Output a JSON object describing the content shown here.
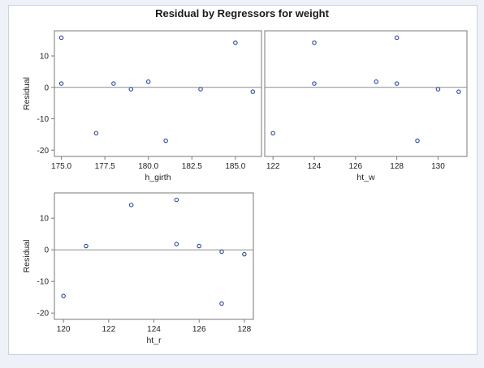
{
  "title": "Residual by Regressors for weight",
  "colors": {
    "marker": "#2948a7",
    "axis": "#7a7a7a",
    "zero_line": "#8c8c8c",
    "text": "#222222"
  },
  "chart_data": [
    {
      "type": "scatter",
      "xlabel": "h_girth",
      "ylabel": "Residual",
      "xlim": [
        174.6,
        186.5
      ],
      "ylim": [
        -22,
        18
      ],
      "xticks": [
        "175.0",
        "177.5",
        "180.0",
        "182.5",
        "185.0"
      ],
      "yticks": [
        "10",
        "0",
        "-10",
        "-20"
      ],
      "reference_line_y": 0,
      "points": [
        {
          "x": 175.0,
          "y": 15.8
        },
        {
          "x": 175.0,
          "y": 1.2
        },
        {
          "x": 177.0,
          "y": -14.6
        },
        {
          "x": 178.0,
          "y": 1.2
        },
        {
          "x": 179.0,
          "y": -0.6
        },
        {
          "x": 180.0,
          "y": 1.8
        },
        {
          "x": 181.0,
          "y": -17.0
        },
        {
          "x": 183.0,
          "y": -0.6
        },
        {
          "x": 185.0,
          "y": 14.2
        },
        {
          "x": 186.0,
          "y": -1.4
        }
      ]
    },
    {
      "type": "scatter",
      "xlabel": "ht_w",
      "ylabel": "",
      "xlim": [
        121.6,
        131.4
      ],
      "ylim": [
        -22,
        18
      ],
      "xticks": [
        "122",
        "124",
        "126",
        "128",
        "130"
      ],
      "yticks": [],
      "reference_line_y": 0,
      "points": [
        {
          "x": 122,
          "y": -14.6
        },
        {
          "x": 124,
          "y": 14.2
        },
        {
          "x": 124,
          "y": 1.2
        },
        {
          "x": 127,
          "y": 1.8
        },
        {
          "x": 128,
          "y": 15.8
        },
        {
          "x": 128,
          "y": 1.2
        },
        {
          "x": 129,
          "y": -17.0
        },
        {
          "x": 130,
          "y": -0.6
        },
        {
          "x": 131,
          "y": -1.4
        }
      ]
    },
    {
      "type": "scatter",
      "xlabel": "ht_r",
      "ylabel": "Residual",
      "xlim": [
        119.6,
        128.4
      ],
      "ylim": [
        -22,
        18
      ],
      "xticks": [
        "120",
        "122",
        "124",
        "126",
        "128"
      ],
      "yticks": [
        "10",
        "0",
        "-10",
        "-20"
      ],
      "reference_line_y": 0,
      "points": [
        {
          "x": 120,
          "y": -14.6
        },
        {
          "x": 121,
          "y": 1.2
        },
        {
          "x": 123,
          "y": 14.2
        },
        {
          "x": 125,
          "y": 15.8
        },
        {
          "x": 125,
          "y": 1.8
        },
        {
          "x": 126,
          "y": 1.2
        },
        {
          "x": 127,
          "y": -0.6
        },
        {
          "x": 127,
          "y": -17.0
        },
        {
          "x": 128,
          "y": -1.4
        }
      ]
    }
  ]
}
